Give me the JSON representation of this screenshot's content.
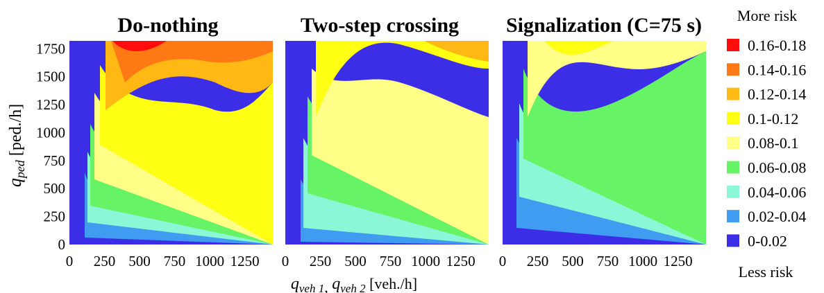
{
  "chart_data": {
    "type": "heatmap",
    "panels": [
      {
        "title": "Do-nothing",
        "risk_levels_by_region": {
          "low_ped_flow": "0-0.02",
          "mid_ped_flow": "0.04-0.08",
          "high_ped_flow_low_veh": "0.08-0.12",
          "peak_near_veh_500_ped_1750": "0.16-0.18",
          "high_ped_high_veh": "0.14-0.16"
        }
      },
      {
        "title": "Two-step crossing",
        "risk_levels_by_region": {
          "low_ped_flow": "0-0.02",
          "mid_ped_flow": "0.04-0.06",
          "high_ped_flow_low_veh": "0.06-0.08",
          "high_ped_high_veh": "0.12-0.14"
        }
      },
      {
        "title": "Signalization (C=75 s)",
        "risk_levels_by_region": {
          "low_ped_flow": "0-0.02",
          "mid_ped_flow": "0.02-0.06",
          "high_ped_flow_veh_400": "0.1-0.12",
          "high_ped_high_veh": "0.04-0.06"
        }
      }
    ],
    "x_ticks": [
      "0",
      "250",
      "500",
      "750",
      "1000",
      "1250"
    ],
    "x_range": [
      0,
      1450
    ],
    "y_ticks": [
      "0",
      "250",
      "500",
      "750",
      "1000",
      "1250",
      "1500",
      "1750"
    ],
    "y_range": [
      0,
      1820
    ],
    "xlabel": {
      "a": "q",
      "a_sub": "veh 1",
      "sep": ", ",
      "b": "q",
      "b_sub": "veh 2",
      "unit": " [veh./h]"
    },
    "ylabel": {
      "base": "q",
      "sub": "ped",
      "unit": " [ped./h]"
    },
    "legend": {
      "top_label": "More risk",
      "bottom_label": "Less risk",
      "entries": [
        {
          "label": "0.16-0.18",
          "color": "#ff0d0d"
        },
        {
          "label": "0.14-0.16",
          "color": "#ff7a14"
        },
        {
          "label": "0.12-0.14",
          "color": "#ffb814"
        },
        {
          "label": "0.1-0.12",
          "color": "#ffff14"
        },
        {
          "label": "0.08-0.1",
          "color": "#ffff88"
        },
        {
          "label": "0.06-0.08",
          "color": "#66f466"
        },
        {
          "label": "0.04-0.06",
          "color": "#8cf7d7"
        },
        {
          "label": "0.02-0.04",
          "color": "#3f9cf0"
        },
        {
          "label": "0-0.02",
          "color": "#3c2ee6"
        }
      ]
    }
  }
}
